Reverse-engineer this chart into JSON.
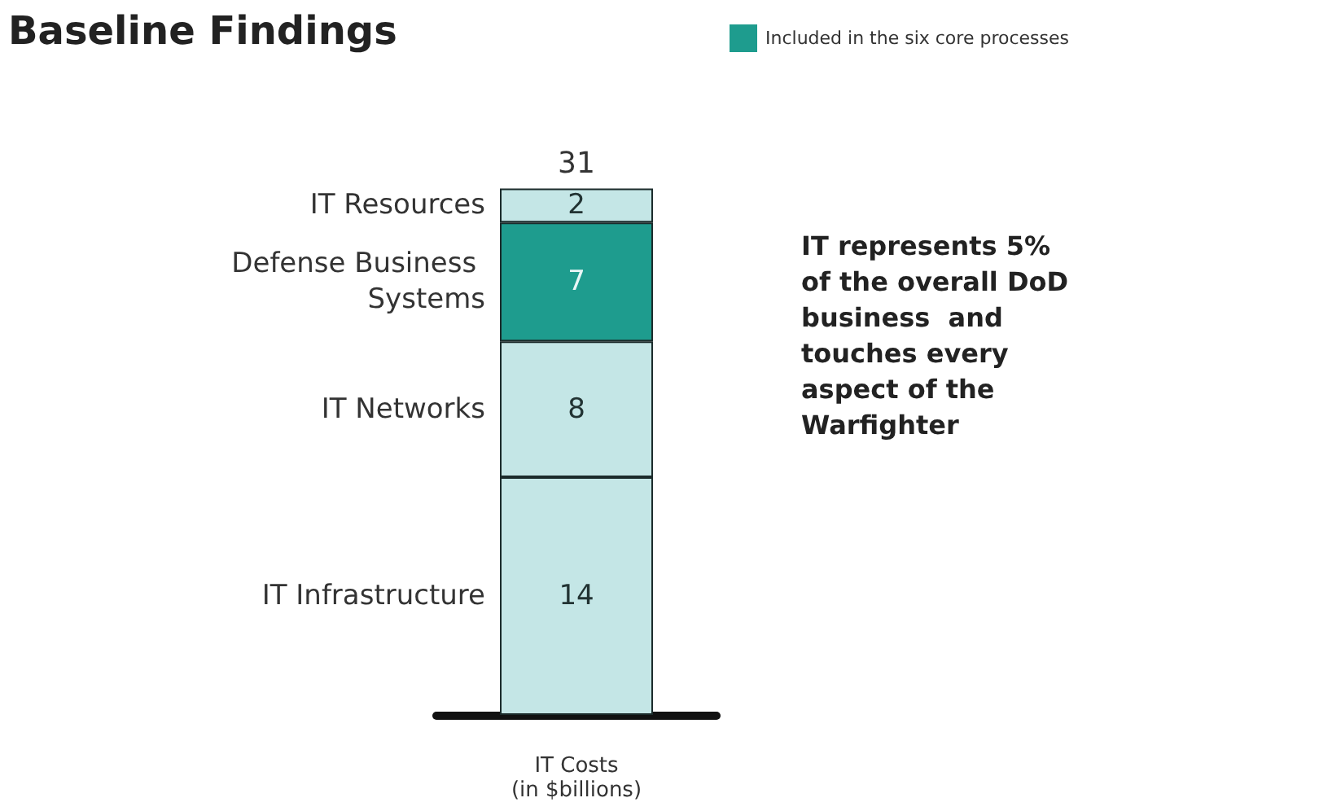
{
  "chart_data": {
    "type": "bar",
    "title": "Baseline Findings",
    "stacked": true,
    "data_labels": true,
    "legend": false,
    "xlabel": "IT Costs\n(in $billions)",
    "categories": [
      null
    ],
    "series": [
      {
        "name": "IT Infrastructure",
        "color": "#c4e6e6",
        "values": [
          14
        ]
      },
      {
        "name": "IT Networks",
        "color": "#c4e6e6",
        "values": [
          8
        ]
      },
      {
        "name": "Defense Business Systems",
        "color": "#1e9c8e",
        "values": [
          7
        ]
      },
      {
        "name": "IT Resources",
        "color": "#c4e6e6",
        "values": [
          2
        ]
      }
    ],
    "totals": [
      "31"
    ],
    "annotations": [
      "Included in the six core processes",
      "IT represents 5% of the overall DoD business  and touches every aspect of the Warfighter"
    ]
  }
}
